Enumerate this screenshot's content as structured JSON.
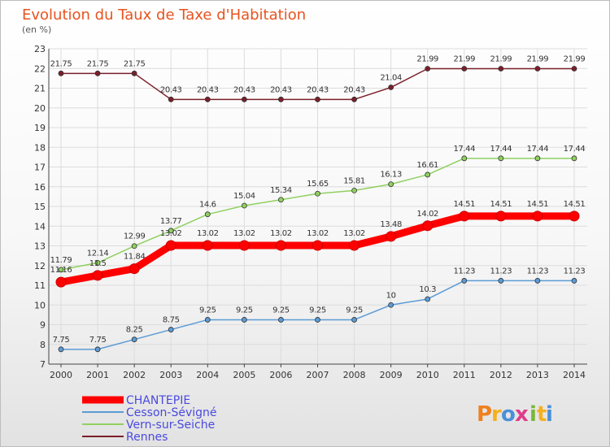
{
  "chart_data": {
    "type": "line",
    "title": "Evolution du Taux de Taxe d'Habitation",
    "subtitle": "(en %)",
    "x": [
      "2000",
      "2001",
      "2002",
      "2003",
      "2004",
      "2005",
      "2006",
      "2007",
      "2008",
      "2009",
      "2010",
      "2011",
      "2012",
      "2013",
      "2014"
    ],
    "ylim": [
      7,
      23
    ],
    "yticks": [
      "7",
      "8",
      "9",
      "10",
      "11",
      "12",
      "13",
      "14",
      "15",
      "16",
      "17",
      "18",
      "19",
      "20",
      "21",
      "22",
      "23"
    ],
    "grid": true,
    "legend_position": "bottom-left",
    "series": [
      {
        "name": "Rennes",
        "color": "#7b1f2a",
        "values": [
          21.75,
          21.75,
          21.75,
          20.43,
          20.43,
          20.43,
          20.43,
          20.43,
          20.43,
          21.04,
          21.99,
          21.99,
          21.99,
          21.99,
          21.99
        ],
        "labels": [
          "21.75",
          "21.75",
          "21.75",
          "20.43",
          "20.43",
          "20.43",
          "20.43",
          "20.43",
          "20.43",
          "21.04",
          "21.99",
          "21.99",
          "21.99",
          "21.99",
          "21.99"
        ]
      },
      {
        "name": "Vern-sur-Seiche",
        "color": "#90d060",
        "values": [
          11.79,
          12.14,
          12.99,
          13.77,
          14.6,
          15.04,
          15.34,
          15.65,
          15.81,
          16.13,
          16.61,
          17.44,
          17.44,
          17.44,
          17.44
        ],
        "labels": [
          "11.79",
          "12.14",
          "12.99",
          "13.77",
          "14.6",
          "15.04",
          "15.34",
          "15.65",
          "15.81",
          "16.13",
          "16.61",
          "17.44",
          "17.44",
          "17.44",
          "17.44"
        ]
      },
      {
        "name": "CHANTEPIE",
        "color": "#ff0000",
        "values": [
          11.16,
          11.5,
          11.84,
          13.02,
          13.02,
          13.02,
          13.02,
          13.02,
          13.02,
          13.48,
          14.02,
          14.51,
          14.51,
          14.51,
          14.51
        ],
        "labels": [
          "11.16",
          "11.5",
          "11.84",
          "13.02",
          "13.02",
          "13.02",
          "13.02",
          "13.02",
          "13.02",
          "13.48",
          "14.02",
          "14.51",
          "14.51",
          "14.51",
          "14.51"
        ]
      },
      {
        "name": "Cesson-Sévigné",
        "color": "#5b9bd5",
        "values": [
          7.75,
          7.75,
          8.25,
          8.75,
          9.25,
          9.25,
          9.25,
          9.25,
          9.25,
          10,
          10.3,
          11.23,
          11.23,
          11.23,
          11.23
        ],
        "labels": [
          "7.75",
          "7.75",
          "8.25",
          "8.75",
          "9.25",
          "9.25",
          "9.25",
          "9.25",
          "9.25",
          "10",
          "10.3",
          "11.23",
          "11.23",
          "11.23",
          "11.23"
        ]
      }
    ],
    "legend": [
      "CHANTEPIE",
      "Cesson-Sévigné",
      "Vern-sur-Seiche",
      "Rennes"
    ]
  },
  "logo": {
    "text": "Proxiti",
    "letters": [
      "P",
      "r",
      "o",
      "x",
      "i",
      "t",
      "i"
    ],
    "colors": [
      "#f07f1e",
      "#f6b01e",
      "#4a90d9",
      "#e03c8a",
      "#79b83a",
      "#f6b01e",
      "#4a90d9"
    ]
  }
}
